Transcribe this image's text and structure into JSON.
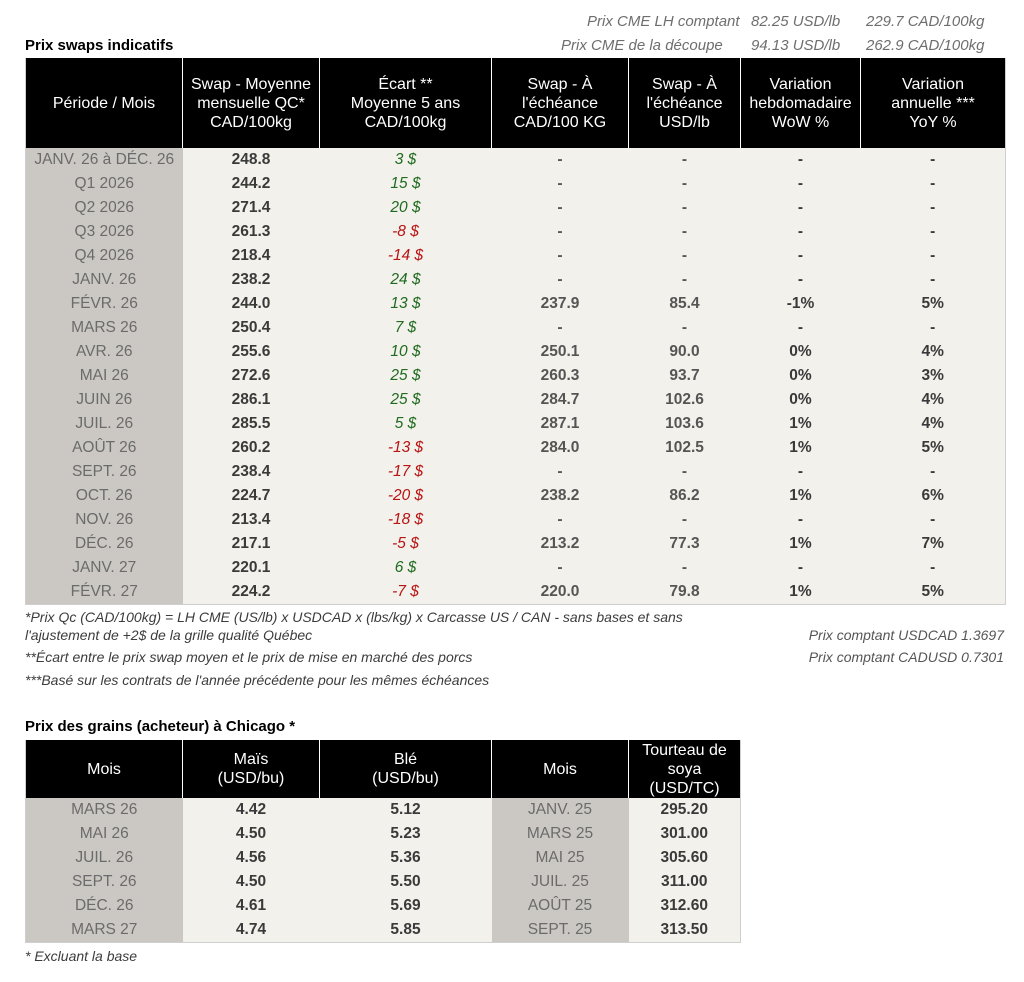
{
  "cme": {
    "lh_label": "Prix CME LH comptant",
    "lh_usd": "82.25 USD/lb",
    "lh_cad": "229.7 CAD/100kg",
    "cut_label": "Prix CME de la découpe",
    "cut_usd": "94.13 USD/lb",
    "cut_cad": "262.9 CAD/100kg"
  },
  "swaps": {
    "title": "Prix swaps indicatifs",
    "headers": [
      [
        "Période / Mois"
      ],
      [
        "Swap - Moyenne",
        "mensuelle QC*",
        "CAD/100kg"
      ],
      [
        "Écart **",
        "Moyenne 5 ans",
        "CAD/100kg"
      ],
      [
        "Swap - À",
        "l'échéance",
        "CAD/100 KG"
      ],
      [
        "Swap - À",
        "l'échéance",
        "USD/lb"
      ],
      [
        "Variation",
        "hebdomadaire",
        "WoW %"
      ],
      [
        "Variation",
        "annuelle ***",
        "YoY %"
      ]
    ],
    "rows": [
      {
        "period": "JANV. 26 à  DÉC. 26",
        "swap_avg": "248.8",
        "gap": "3 $",
        "gap_sign": "pos",
        "swap_cad": "-",
        "swap_usd": "-",
        "wow": "-",
        "wow_sign": "none",
        "yoy": "-",
        "yoy_sign": "none"
      },
      {
        "period": "Q1 2026",
        "swap_avg": "244.2",
        "gap": "15 $",
        "gap_sign": "pos",
        "swap_cad": "-",
        "swap_usd": "-",
        "wow": "-",
        "wow_sign": "none",
        "yoy": "-",
        "yoy_sign": "none"
      },
      {
        "period": "Q2 2026",
        "swap_avg": "271.4",
        "gap": "20 $",
        "gap_sign": "pos",
        "swap_cad": "-",
        "swap_usd": "-",
        "wow": "-",
        "wow_sign": "none",
        "yoy": "-",
        "yoy_sign": "none"
      },
      {
        "period": "Q3 2026",
        "swap_avg": "261.3",
        "gap": "-8 $",
        "gap_sign": "neg",
        "swap_cad": "-",
        "swap_usd": "-",
        "wow": "-",
        "wow_sign": "none",
        "yoy": "-",
        "yoy_sign": "none"
      },
      {
        "period": "Q4 2026",
        "swap_avg": "218.4",
        "gap": "-14 $",
        "gap_sign": "neg",
        "swap_cad": "-",
        "swap_usd": "-",
        "wow": "-",
        "wow_sign": "none",
        "yoy": "-",
        "yoy_sign": "none"
      },
      {
        "period": "JANV. 26",
        "swap_avg": "238.2",
        "gap": "24 $",
        "gap_sign": "pos",
        "swap_cad": "-",
        "swap_usd": "-",
        "wow": "-",
        "wow_sign": "pos",
        "yoy": "-",
        "yoy_sign": "pos"
      },
      {
        "period": "FÉVR. 26",
        "swap_avg": "244.0",
        "gap": "13 $",
        "gap_sign": "pos",
        "swap_cad": "237.9",
        "swap_usd": "85.4",
        "wow": "-1%",
        "wow_sign": "neg",
        "yoy": "5%",
        "yoy_sign": "pos"
      },
      {
        "period": "MARS 26",
        "swap_avg": "250.4",
        "gap": "7 $",
        "gap_sign": "pos",
        "swap_cad": "-",
        "swap_usd": "-",
        "wow": "-",
        "wow_sign": "pos",
        "yoy": "-",
        "yoy_sign": "pos"
      },
      {
        "period": "AVR. 26",
        "swap_avg": "255.6",
        "gap": "10 $",
        "gap_sign": "pos",
        "swap_cad": "250.1",
        "swap_usd": "90.0",
        "wow": "0%",
        "wow_sign": "pos",
        "yoy": "4%",
        "yoy_sign": "pos"
      },
      {
        "period": "MAI 26",
        "swap_avg": "272.6",
        "gap": "25 $",
        "gap_sign": "pos",
        "swap_cad": "260.3",
        "swap_usd": "93.7",
        "wow": "0%",
        "wow_sign": "pos",
        "yoy": "3%",
        "yoy_sign": "pos"
      },
      {
        "period": "JUIN 26",
        "swap_avg": "286.1",
        "gap": "25 $",
        "gap_sign": "pos",
        "swap_cad": "284.7",
        "swap_usd": "102.6",
        "wow": "0%",
        "wow_sign": "pos",
        "yoy": "4%",
        "yoy_sign": "pos"
      },
      {
        "period": "JUIL. 26",
        "swap_avg": "285.5",
        "gap": "5 $",
        "gap_sign": "pos",
        "swap_cad": "287.1",
        "swap_usd": "103.6",
        "wow": "1%",
        "wow_sign": "pos",
        "yoy": "4%",
        "yoy_sign": "pos"
      },
      {
        "period": "AOÛT 26",
        "swap_avg": "260.2",
        "gap": "-13 $",
        "gap_sign": "neg",
        "swap_cad": "284.0",
        "swap_usd": "102.5",
        "wow": "1%",
        "wow_sign": "pos",
        "yoy": "5%",
        "yoy_sign": "pos"
      },
      {
        "period": "SEPT. 26",
        "swap_avg": "238.4",
        "gap": "-17 $",
        "gap_sign": "neg",
        "swap_cad": "-",
        "swap_usd": "-",
        "wow": "-",
        "wow_sign": "pos",
        "yoy": "-",
        "yoy_sign": "pos"
      },
      {
        "period": "OCT. 26",
        "swap_avg": "224.7",
        "gap": "-20 $",
        "gap_sign": "neg",
        "swap_cad": "238.2",
        "swap_usd": "86.2",
        "wow": "1%",
        "wow_sign": "pos",
        "yoy": "6%",
        "yoy_sign": "pos"
      },
      {
        "period": "NOV. 26",
        "swap_avg": "213.4",
        "gap": "-18 $",
        "gap_sign": "neg",
        "swap_cad": "-",
        "swap_usd": "-",
        "wow": "-",
        "wow_sign": "pos",
        "yoy": "-",
        "yoy_sign": "pos"
      },
      {
        "period": "DÉC. 26",
        "swap_avg": "217.1",
        "gap": "-5 $",
        "gap_sign": "neg",
        "swap_cad": "213.2",
        "swap_usd": "77.3",
        "wow": "1%",
        "wow_sign": "pos",
        "yoy": "7%",
        "yoy_sign": "pos"
      },
      {
        "period": "JANV. 27",
        "swap_avg": "220.1",
        "gap": "6 $",
        "gap_sign": "pos",
        "swap_cad": "-",
        "swap_usd": "-",
        "wow": "-",
        "wow_sign": "pos",
        "yoy": "-",
        "yoy_sign": "pos"
      },
      {
        "period": "FÉVR. 27",
        "swap_avg": "224.2",
        "gap": "-7 $",
        "gap_sign": "neg",
        "swap_cad": "220.0",
        "swap_usd": "79.8",
        "wow": "1%",
        "wow_sign": "pos",
        "yoy": "5%",
        "yoy_sign": "pos"
      }
    ],
    "notes": {
      "n1_line1": "*Prix Qc (CAD/100kg) = LH CME (US/lb) x USDCAD x (lbs/kg) x Carcasse US / CAN - sans bases et sans",
      "n1_line2": "l'ajustement de +2$ de la grille qualité Québec",
      "n2": "**Écart entre le prix swap moyen et le prix de mise en marché des porcs",
      "n3": "***Basé sur les contrats de l'année précédente pour les mêmes échéances",
      "fx_usdcad": "Prix comptant USDCAD 1.3697",
      "fx_cadusd": "Prix comptant CADUSD 0.7301"
    }
  },
  "grains": {
    "title": "Prix des grains (acheteur) à Chicago *",
    "headers": [
      [
        "Mois"
      ],
      [
        "Maïs",
        "(USD/bu)"
      ],
      [
        "Blé",
        "(USD/bu)"
      ],
      [
        "Mois"
      ],
      [
        "Tourteau de",
        "soya",
        "(USD/TC)"
      ]
    ],
    "rows": [
      {
        "month": "MARS 26",
        "corn": "4.42",
        "wheat": "5.12",
        "month2": "JANV. 25",
        "soy": "295.20"
      },
      {
        "month": "MAI 26",
        "corn": "4.50",
        "wheat": "5.23",
        "month2": "MARS 25",
        "soy": "301.00"
      },
      {
        "month": "JUIL. 26",
        "corn": "4.56",
        "wheat": "5.36",
        "month2": "MAI 25",
        "soy": "305.60"
      },
      {
        "month": "SEPT. 26",
        "corn": "4.50",
        "wheat": "5.50",
        "month2": "JUIL. 25",
        "soy": "311.00"
      },
      {
        "month": "DÉC. 26",
        "corn": "4.61",
        "wheat": "5.69",
        "month2": "AOÛT 25",
        "soy": "312.60"
      },
      {
        "month": "MARS 27",
        "corn": "4.74",
        "wheat": "5.85",
        "month2": "SEPT. 25",
        "soy": "313.50"
      }
    ],
    "note": "* Excluant la base"
  }
}
